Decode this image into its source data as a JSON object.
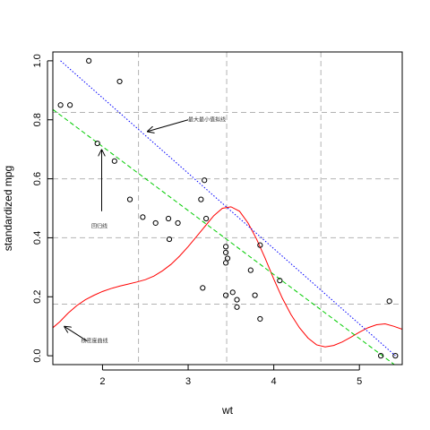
{
  "chart_data": {
    "type": "scatter",
    "xlabel": "wt",
    "ylabel": "standardized mpg",
    "xlim": [
      1.42,
      5.5
    ],
    "ylim": [
      -0.03,
      1.03
    ],
    "xticks": [
      2,
      3,
      4,
      5
    ],
    "xtick_labels": [
      "2",
      "3",
      "4",
      "5"
    ],
    "yticks": [
      0.0,
      0.2,
      0.4,
      0.6,
      0.8,
      1.0
    ],
    "ytick_labels": [
      "0.0",
      "0.2",
      "0.4",
      "0.6",
      "0.8",
      "1.0"
    ],
    "grid_v": [
      2.42,
      3.45,
      4.55
    ],
    "grid_h": [
      0.175,
      0.4,
      0.6,
      0.825
    ],
    "points": [
      [
        1.51,
        0.85
      ],
      [
        1.62,
        0.85
      ],
      [
        1.84,
        1.0
      ],
      [
        2.2,
        0.93
      ],
      [
        1.94,
        0.72
      ],
      [
        2.14,
        0.66
      ],
      [
        2.32,
        0.53
      ],
      [
        2.47,
        0.47
      ],
      [
        2.62,
        0.45
      ],
      [
        2.77,
        0.465
      ],
      [
        2.78,
        0.395
      ],
      [
        2.88,
        0.45
      ],
      [
        3.15,
        0.53
      ],
      [
        3.17,
        0.23
      ],
      [
        3.19,
        0.595
      ],
      [
        3.21,
        0.465
      ],
      [
        3.44,
        0.37
      ],
      [
        3.44,
        0.35
      ],
      [
        3.44,
        0.205
      ],
      [
        3.44,
        0.315
      ],
      [
        3.46,
        0.33
      ],
      [
        3.52,
        0.215
      ],
      [
        3.57,
        0.19
      ],
      [
        3.57,
        0.165
      ],
      [
        3.73,
        0.29
      ],
      [
        3.78,
        0.205
      ],
      [
        3.84,
        0.375
      ],
      [
        3.84,
        0.125
      ],
      [
        4.07,
        0.255
      ],
      [
        5.25,
        0.0
      ],
      [
        5.35,
        0.185
      ],
      [
        5.42,
        0.0
      ]
    ],
    "series": [
      {
        "color": "#ff0000",
        "style": "solid",
        "x": [
          1.42,
          1.5,
          1.6,
          1.7,
          1.8,
          1.9,
          2.0,
          2.1,
          2.2,
          2.3,
          2.4,
          2.5,
          2.6,
          2.7,
          2.8,
          2.9,
          3.0,
          3.1,
          3.2,
          3.3,
          3.4,
          3.5,
          3.6,
          3.7,
          3.8,
          3.9,
          4.0,
          4.1,
          4.2,
          4.3,
          4.4,
          4.5,
          4.6,
          4.7,
          4.8,
          4.9,
          5.0,
          5.1,
          5.2,
          5.3,
          5.4,
          5.5
        ],
        "y": [
          0.095,
          0.115,
          0.145,
          0.17,
          0.19,
          0.205,
          0.218,
          0.228,
          0.236,
          0.243,
          0.25,
          0.258,
          0.27,
          0.288,
          0.31,
          0.338,
          0.37,
          0.405,
          0.44,
          0.475,
          0.5,
          0.505,
          0.49,
          0.45,
          0.395,
          0.33,
          0.26,
          0.195,
          0.14,
          0.095,
          0.06,
          0.037,
          0.03,
          0.035,
          0.047,
          0.063,
          0.08,
          0.095,
          0.105,
          0.108,
          0.1,
          0.09
        ]
      },
      {
        "color": "#00cc00",
        "style": "dashed",
        "x": [
          1.42,
          5.5
        ],
        "y": [
          0.835,
          -0.05
        ]
      },
      {
        "color": "#0000ff",
        "style": "dotted",
        "x": [
          1.51,
          5.42
        ],
        "y": [
          1.0,
          0.0
        ]
      }
    ],
    "annotations": [
      {
        "text": "最大最小值拟线",
        "x": 3.0,
        "y": 0.8,
        "arrow_to": [
          2.52,
          0.76
        ]
      },
      {
        "text": "回归线",
        "x": 1.87,
        "y": 0.44,
        "arrow_from": [
          1.99,
          0.49
        ],
        "arrow_to": [
          1.99,
          0.7
        ]
      },
      {
        "text": "核密度曲线",
        "x": 1.75,
        "y": 0.05,
        "arrow_from": [
          1.82,
          0.05
        ],
        "arrow_to": [
          1.55,
          0.1
        ]
      }
    ]
  }
}
